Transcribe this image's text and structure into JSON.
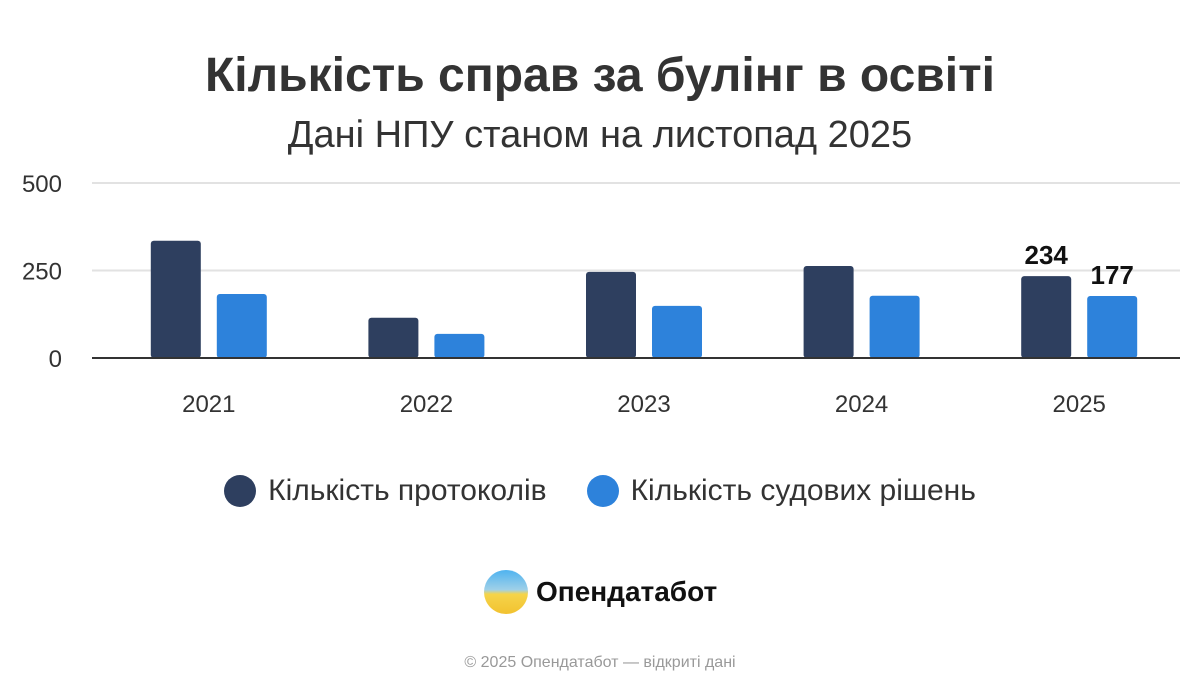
{
  "chart_data": {
    "type": "bar",
    "title": "Кількість справ за булінг в освіті",
    "subtitle": "Дані НПУ станом на листопад 2025",
    "categories": [
      "2021",
      "2022",
      "2023",
      "2024",
      "2025"
    ],
    "series": [
      {
        "name": "Кількість протоколів",
        "color": "#2e3f5f",
        "values": [
          335,
          115,
          246,
          263,
          234
        ]
      },
      {
        "name": "Кількість судових рішень",
        "color": "#2d82db",
        "values": [
          183,
          69,
          149,
          178,
          177
        ]
      }
    ],
    "data_labels": [
      {
        "category": "2025",
        "series": 0,
        "text": "234"
      },
      {
        "category": "2025",
        "series": 1,
        "text": "177"
      }
    ],
    "ylim": [
      0,
      500
    ],
    "yticks": [
      "0",
      "250",
      "500"
    ],
    "grid": true,
    "legend": "bottom"
  },
  "logo": {
    "text": "Опендатабот"
  },
  "footer": "© 2025 Опендатабот — відкриті дані"
}
